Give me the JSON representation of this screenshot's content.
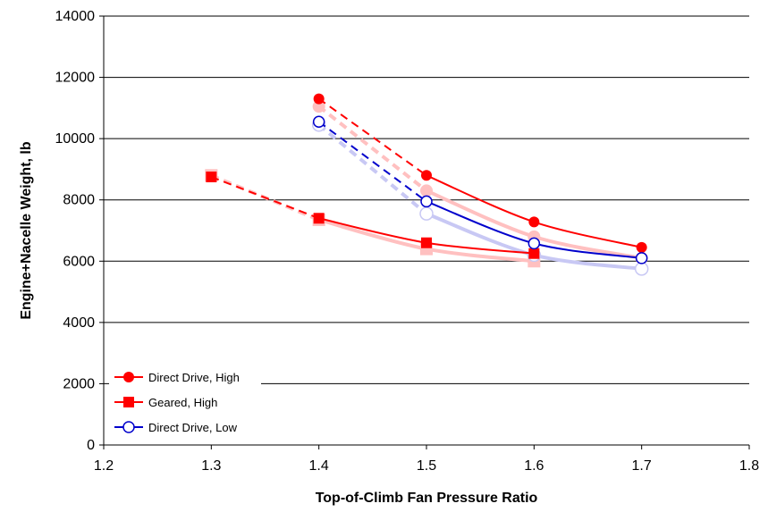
{
  "chart_data": {
    "type": "line",
    "title": "",
    "xlabel": "Top-of-Climb Fan Pressure Ratio",
    "ylabel": "Engine+Nacelle Weight, lb",
    "xlim": [
      1.2,
      1.8
    ],
    "ylim": [
      0,
      14000
    ],
    "xticks": [
      "1.2",
      "1.3",
      "1.4",
      "1.5",
      "1.6",
      "1.7",
      "1.8"
    ],
    "yticks": [
      "0",
      "2000",
      "4000",
      "6000",
      "8000",
      "10000",
      "12000",
      "14000"
    ],
    "grid": "horizontal",
    "legend_position": "bottom-left",
    "series": [
      {
        "name": "Direct Drive, High",
        "color": "#ff0000",
        "marker": "filled-circle",
        "x": [
          1.4,
          1.5,
          1.6,
          1.7
        ],
        "y": [
          11300,
          8800,
          7280,
          6450
        ],
        "dashed_until_x": 1.5
      },
      {
        "name": "Geared, High",
        "color": "#ff0000",
        "marker": "filled-square",
        "x": [
          1.3,
          1.4,
          1.5,
          1.6
        ],
        "y": [
          8750,
          7400,
          6600,
          6250
        ],
        "dashed_until_x": 1.4
      },
      {
        "name": "Direct Drive, Low",
        "color": "#0000cc",
        "marker": "open-circle",
        "x": [
          1.4,
          1.5,
          1.6,
          1.7
        ],
        "y": [
          10550,
          7950,
          6580,
          6100
        ],
        "dashed_until_x": 1.5
      }
    ],
    "faded_series": [
      {
        "color": "#ffc0c0",
        "marker": "filled-circle",
        "x": [
          1.4,
          1.5,
          1.6,
          1.7
        ],
        "y": [
          11050,
          8300,
          6800,
          6100
        ],
        "dashed_until_x": 1.5
      },
      {
        "color": "#ffc0c0",
        "marker": "filled-square",
        "x": [
          1.3,
          1.4,
          1.5,
          1.6
        ],
        "y": [
          8800,
          7350,
          6400,
          6000
        ],
        "dashed_until_x": 1.4
      },
      {
        "color": "#c8c8f4",
        "marker": "open-circle",
        "x": [
          1.4,
          1.5,
          1.6,
          1.7
        ],
        "y": [
          10450,
          7550,
          6200,
          5750
        ],
        "dashed_until_x": 1.5
      }
    ]
  }
}
